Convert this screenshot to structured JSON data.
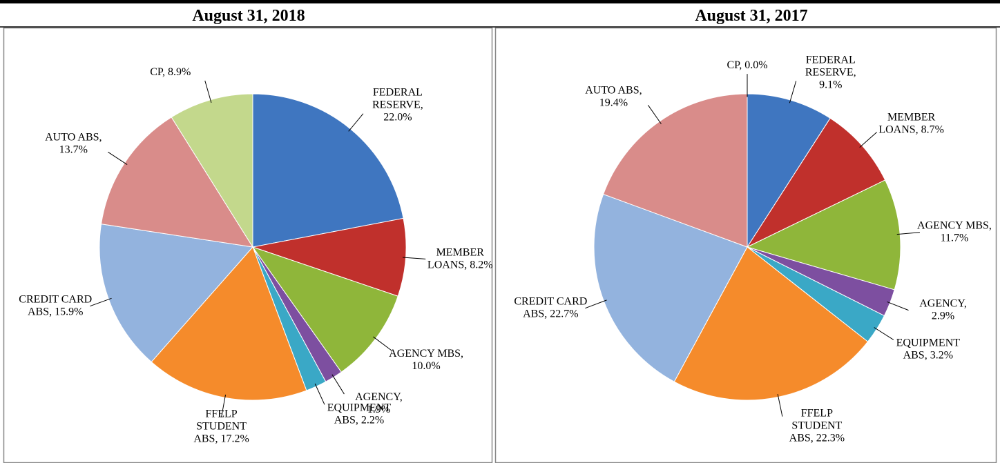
{
  "chart_data": [
    {
      "type": "pie",
      "title": "August 31, 2018",
      "values": [
        22.0,
        8.2,
        10.0,
        1.9,
        2.2,
        17.2,
        15.9,
        13.7,
        8.9
      ],
      "value_labels": [
        "FEDERAL RESERVE, 22.0%",
        "MEMBER LOANS, 8.2%",
        "AGENCY MBS, 10.0%",
        "AGENCY, 1.9%",
        "EQUIPMENT ABS, 2.2%",
        "FFELP STUDENT ABS, 17.2%",
        "CREDIT CARD ABS, 15.9%",
        "AUTO ABS, 13.7%",
        "CP, 8.9%"
      ],
      "colors": [
        "#3f76c0",
        "#c0302c",
        "#8fb63a",
        "#7d4fa0",
        "#3aa8c6",
        "#f58b2b",
        "#93b3de",
        "#d98c8a",
        "#c3d88c"
      ]
    },
    {
      "type": "pie",
      "title": "August 31, 2017",
      "values": [
        9.1,
        8.7,
        11.7,
        2.9,
        3.2,
        22.3,
        22.7,
        19.4,
        0.0
      ],
      "value_labels": [
        "FEDERAL RESERVE, 9.1%",
        "MEMBER LOANS, 8.7%",
        "AGENCY MBS, 11.7%",
        "AGENCY, 2.9%",
        "EQUIPMENT ABS, 3.2%",
        "FFELP STUDENT ABS, 22.3%",
        "CREDIT CARD ABS, 22.7%",
        "AUTO ABS, 19.4%",
        "CP, 0.0%"
      ],
      "colors": [
        "#3f76c0",
        "#c0302c",
        "#8fb63a",
        "#7d4fa0",
        "#3aa8c6",
        "#f58b2b",
        "#93b3de",
        "#d98c8a",
        "#c3d88c"
      ]
    }
  ]
}
